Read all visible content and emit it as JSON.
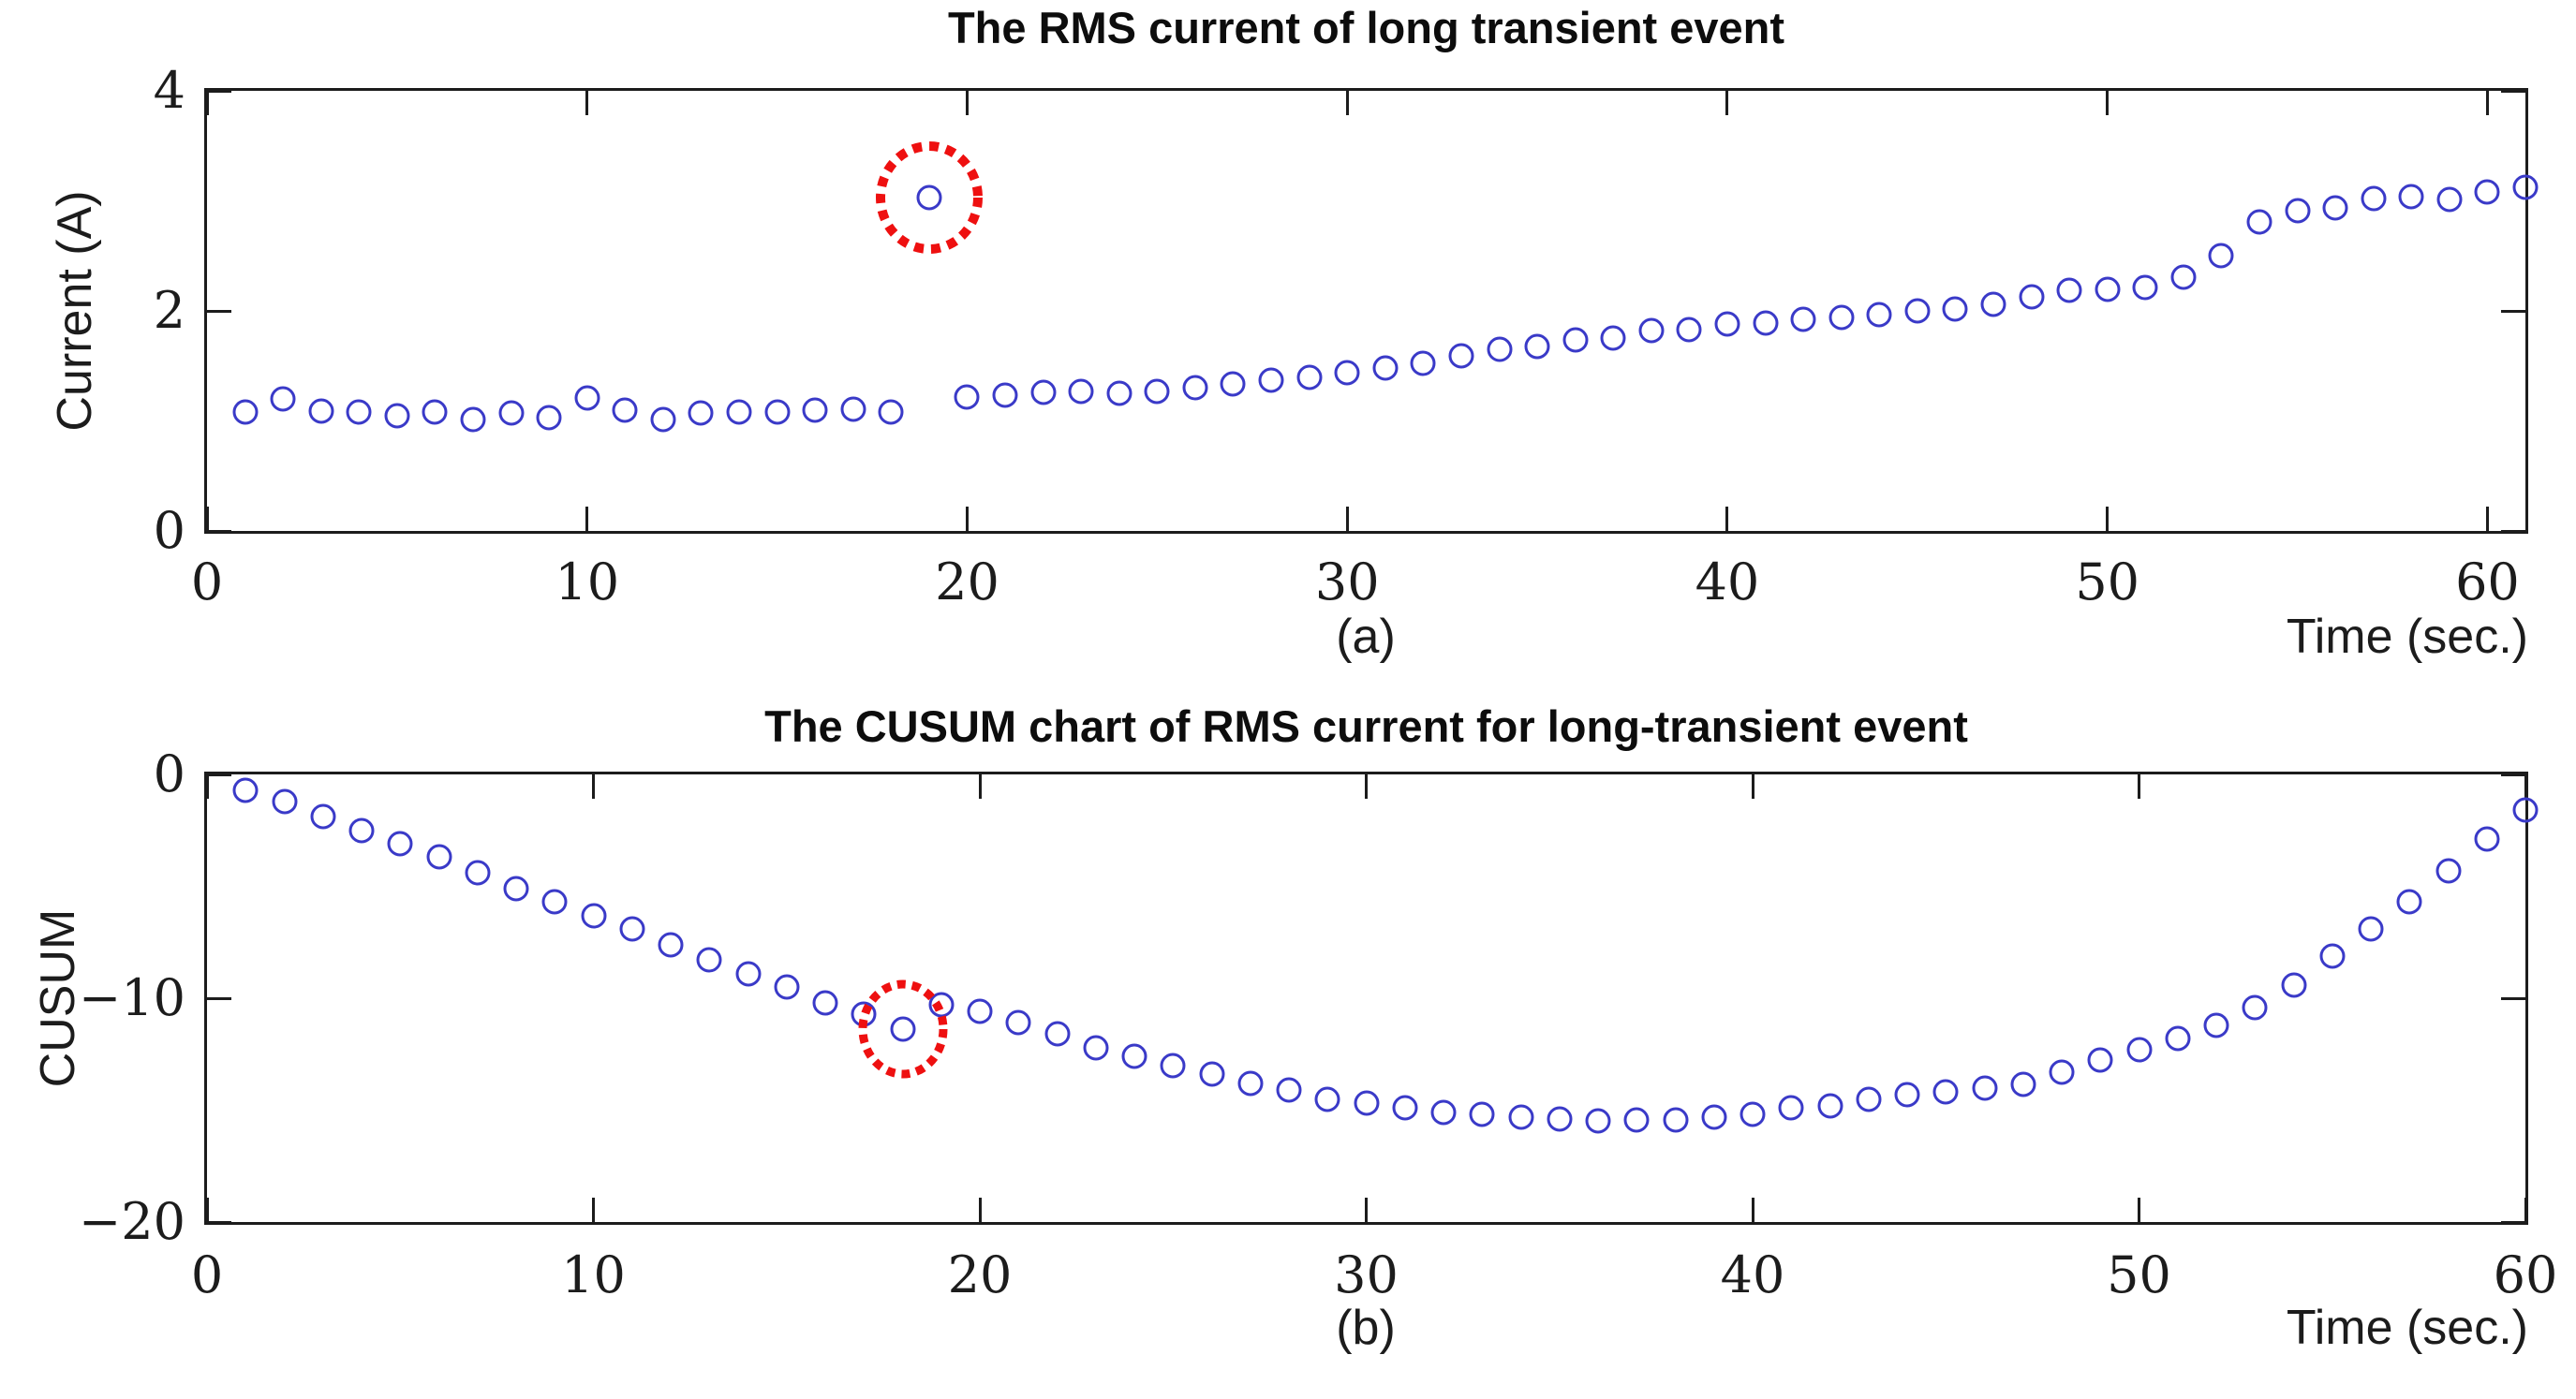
{
  "figure": {
    "background": "#ffffff",
    "axis_color": "#1c1c1c",
    "marker_color": "#3a3ac8",
    "highlight_color": "#ee1010"
  },
  "chart_data": [
    {
      "type": "scatter",
      "panel": "a",
      "title": "The RMS current of long transient event",
      "ylabel": "Current (A)",
      "xlabel": "Time (sec.)",
      "caption": "(a)",
      "legend": null,
      "grid": false,
      "xlim": [
        0,
        61
      ],
      "ylim": [
        0,
        4
      ],
      "xticks": [
        0,
        10,
        20,
        30,
        40,
        50,
        60
      ],
      "xtick_labels": [
        "0",
        "10",
        "20",
        "30",
        "40",
        "50",
        "60"
      ],
      "yticks": [
        0,
        2,
        4
      ],
      "ytick_labels": [
        "0",
        "2",
        "4"
      ],
      "x": [
        1,
        2,
        3,
        4,
        5,
        6,
        7,
        8,
        9,
        10,
        11,
        12,
        13,
        14,
        15,
        16,
        17,
        18,
        19,
        20,
        21,
        22,
        23,
        24,
        25,
        26,
        27,
        28,
        29,
        30,
        31,
        32,
        33,
        34,
        35,
        36,
        37,
        38,
        39,
        40,
        41,
        42,
        43,
        44,
        45,
        46,
        47,
        48,
        49,
        50,
        51,
        52,
        53,
        54,
        55,
        56,
        57,
        58,
        59,
        60,
        61
      ],
      "values": [
        1.08,
        1.2,
        1.09,
        1.08,
        1.05,
        1.08,
        1.01,
        1.07,
        1.03,
        1.21,
        1.1,
        1.01,
        1.07,
        1.08,
        1.08,
        1.1,
        1.11,
        1.08,
        3.03,
        1.22,
        1.23,
        1.26,
        1.27,
        1.25,
        1.27,
        1.3,
        1.34,
        1.37,
        1.4,
        1.44,
        1.48,
        1.52,
        1.59,
        1.65,
        1.68,
        1.74,
        1.75,
        1.82,
        1.83,
        1.88,
        1.89,
        1.92,
        1.94,
        1.97,
        2.0,
        2.02,
        2.06,
        2.13,
        2.19,
        2.2,
        2.21,
        2.31,
        2.5,
        2.81,
        2.91,
        2.94,
        3.02,
        3.04,
        3.01,
        3.08,
        3.12
      ],
      "highlight": {
        "x": 19,
        "y": 3.03,
        "note": "outlier circled with red dotted ellipse"
      }
    },
    {
      "type": "scatter",
      "panel": "b",
      "title": "The CUSUM chart of RMS current for long-transient event",
      "ylabel": "CUSUM",
      "xlabel": "Time (sec.)",
      "caption": "(b)",
      "legend": null,
      "grid": false,
      "xlim": [
        0,
        60
      ],
      "ylim": [
        -20,
        0
      ],
      "xticks": [
        0,
        10,
        20,
        30,
        40,
        50,
        60
      ],
      "xtick_labels": [
        "0",
        "10",
        "20",
        "30",
        "40",
        "50",
        "60"
      ],
      "yticks": [
        0,
        -10,
        -20
      ],
      "ytick_labels": [
        "0",
        "−10",
        "−20"
      ],
      "x": [
        1,
        2,
        3,
        4,
        5,
        6,
        7,
        8,
        9,
        10,
        11,
        12,
        13,
        14,
        15,
        16,
        17,
        18,
        19,
        20,
        21,
        22,
        23,
        24,
        25,
        26,
        27,
        28,
        29,
        30,
        31,
        32,
        33,
        34,
        35,
        36,
        37,
        38,
        39,
        40,
        41,
        42,
        43,
        44,
        45,
        46,
        47,
        48,
        49,
        50,
        51,
        52,
        53,
        54,
        55,
        56,
        57,
        58,
        59,
        60
      ],
      "values": [
        -0.7,
        -1.2,
        -1.9,
        -2.5,
        -3.1,
        -3.7,
        -4.4,
        -5.1,
        -5.7,
        -6.3,
        -6.9,
        -7.6,
        -8.3,
        -8.9,
        -9.5,
        -10.2,
        -10.7,
        -11.4,
        -10.3,
        -10.6,
        -11.1,
        -11.6,
        -12.2,
        -12.6,
        -13.0,
        -13.4,
        -13.8,
        -14.1,
        -14.5,
        -14.7,
        -14.9,
        -15.1,
        -15.2,
        -15.3,
        -15.4,
        -15.5,
        -15.45,
        -15.45,
        -15.3,
        -15.2,
        -14.9,
        -14.8,
        -14.5,
        -14.3,
        -14.2,
        -14.0,
        -13.85,
        -13.3,
        -12.75,
        -12.3,
        -11.8,
        -11.2,
        -10.4,
        -9.4,
        -8.1,
        -6.9,
        -5.7,
        -4.3,
        -2.9,
        -1.6
      ],
      "highlight": {
        "x": 18,
        "y": -11.4,
        "note": "change point circled with red dotted ellipse"
      }
    }
  ]
}
